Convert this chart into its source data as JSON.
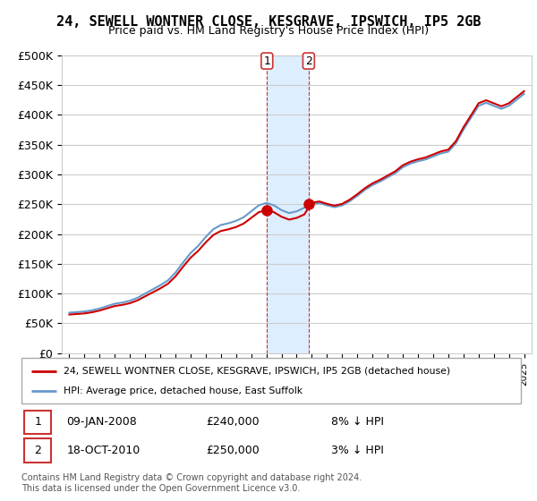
{
  "title": "24, SEWELL WONTNER CLOSE, KESGRAVE, IPSWICH, IP5 2GB",
  "subtitle": "Price paid vs. HM Land Registry's House Price Index (HPI)",
  "legend_line1": "24, SEWELL WONTNER CLOSE, KESGRAVE, IPSWICH, IP5 2GB (detached house)",
  "legend_line2": "HPI: Average price, detached house, East Suffolk",
  "sale1_date": "09-JAN-2008",
  "sale1_price": "£240,000",
  "sale1_pct": "8% ↓ HPI",
  "sale2_date": "18-OCT-2010",
  "sale2_price": "£250,000",
  "sale2_pct": "3% ↓ HPI",
  "footer": "Contains HM Land Registry data © Crown copyright and database right 2024.\nThis data is licensed under the Open Government Licence v3.0.",
  "red_color": "#cc0000",
  "blue_color": "#6699cc",
  "shade_color": "#ddeeff",
  "ylim_min": 0,
  "ylim_max": 500000,
  "yticks": [
    0,
    50000,
    100000,
    150000,
    200000,
    250000,
    300000,
    350000,
    400000,
    450000,
    500000
  ],
  "ytick_labels": [
    "£0",
    "£50K",
    "£100K",
    "£150K",
    "£200K",
    "£250K",
    "£300K",
    "£350K",
    "£400K",
    "£450K",
    "£500K"
  ],
  "sale1_year": 2008.04,
  "sale2_year": 2010.79,
  "sale1_price_val": 240000,
  "sale2_price_val": 250000
}
